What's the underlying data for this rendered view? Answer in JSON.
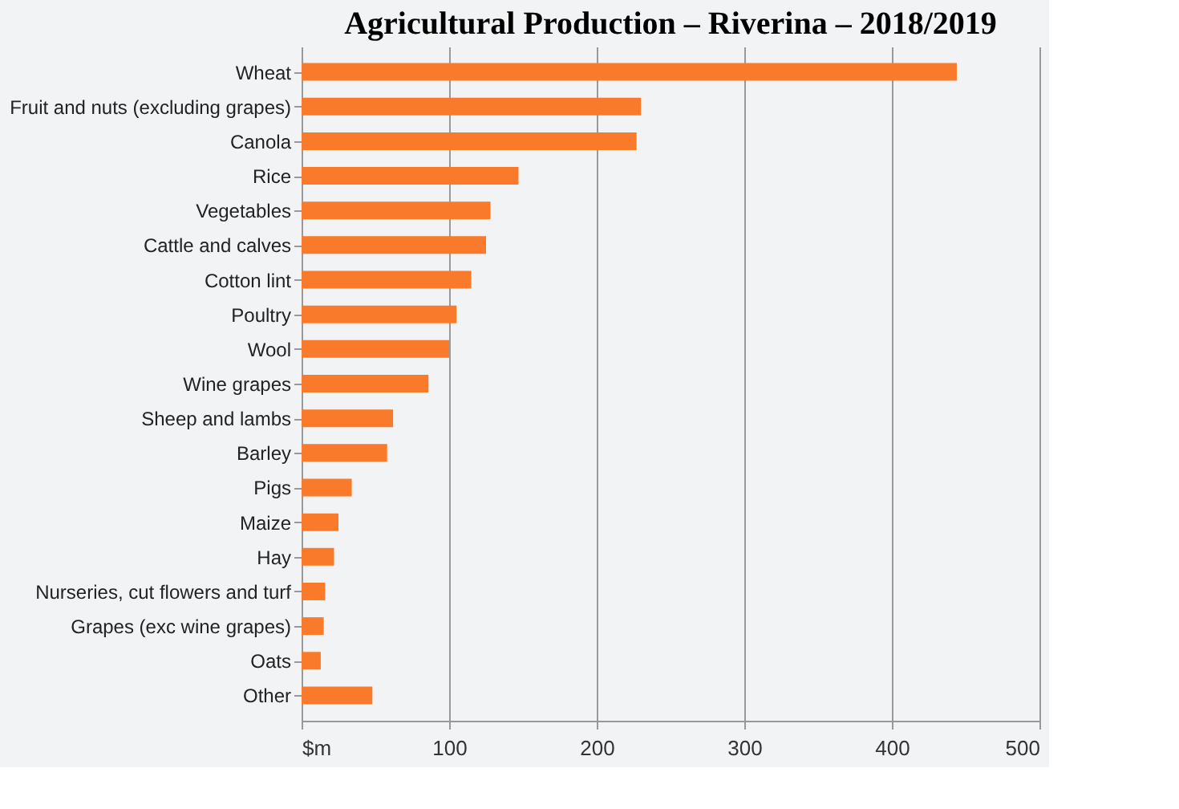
{
  "chart_data": {
    "type": "bar",
    "orientation": "horizontal",
    "title": "Agricultural Production – Riverina – 2018/2019",
    "categories": [
      "Wheat",
      "Fruit and nuts (excluding grapes)",
      "Canola",
      "Rice",
      "Vegetables",
      "Cattle and calves",
      "Cotton lint",
      "Poultry",
      "Wool",
      "Wine grapes",
      "Sheep and lambs",
      "Barley",
      "Pigs",
      "Maize",
      "Hay",
      "Nurseries, cut flowers and turf",
      "Grapes (exc wine grapes)",
      "Oats",
      "Other"
    ],
    "values": [
      444,
      230,
      227,
      147,
      128,
      125,
      115,
      105,
      100,
      86,
      62,
      58,
      34,
      25,
      22,
      16,
      15,
      13,
      48
    ],
    "color": "#f97a2a",
    "xlim": [
      0,
      500
    ],
    "xticks": [
      {
        "value": 0,
        "label": "$m"
      },
      100,
      200,
      300,
      400,
      500
    ],
    "grid": "x"
  }
}
